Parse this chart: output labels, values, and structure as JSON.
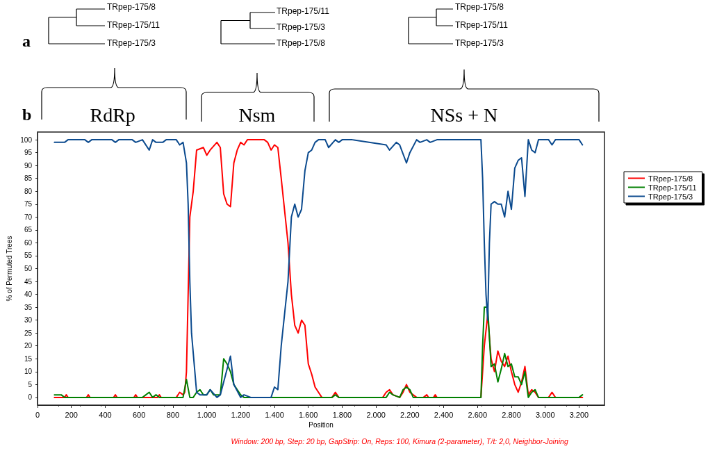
{
  "chart_data": {
    "type": "line",
    "xlabel": "Position",
    "ylabel": "% of Permuted Trees",
    "annotations": [
      "a",
      "b",
      "RdRp",
      "Nsm",
      "NSs + N",
      "TRpep-175/8",
      "TRpep-175/11",
      "TRpep-175/3",
      "TRpep-175/11",
      "TRpep-175/3",
      "TRpep-175/8",
      "TRpep-175/8",
      "TRpep-175/11",
      "TRpep-175/3",
      "Window: 200 bp, Step: 20 bp, GapStrip: On, Reps: 100, Kimura (2-parameter), T/t: 2,0, Neighbor-Joining"
    ],
    "xlim": [
      0,
      3350
    ],
    "ylim": [
      -3,
      103
    ],
    "xticks": [
      0,
      200,
      400,
      600,
      800,
      {
        "value": 1000,
        "label": "1.000"
      },
      {
        "value": 1200,
        "label": "1.200"
      },
      {
        "value": 1400,
        "label": "1.400"
      },
      {
        "value": 1600,
        "label": "1.600"
      },
      {
        "value": 1800,
        "label": "1.800"
      },
      {
        "value": 2000,
        "label": "2.000"
      },
      {
        "value": 2200,
        "label": "2.200"
      },
      {
        "value": 2400,
        "label": "2.400"
      },
      {
        "value": 2600,
        "label": "2.600"
      },
      {
        "value": 2800,
        "label": "2.800"
      },
      {
        "value": 3000,
        "label": "3.000"
      },
      {
        "value": 3200,
        "label": "3.200"
      }
    ],
    "yticks": [
      0,
      5,
      10,
      15,
      20,
      25,
      30,
      35,
      40,
      45,
      50,
      55,
      60,
      65,
      70,
      75,
      80,
      85,
      90,
      95,
      100
    ],
    "grid": false,
    "legend": "right",
    "marker": "none",
    "line_style": "solid",
    "series": [
      {
        "name": "TRpep-175/8",
        "color": "#ff0000",
        "x": [
          100,
          160,
          170,
          180,
          290,
          300,
          310,
          450,
          460,
          470,
          570,
          580,
          590,
          710,
          720,
          730,
          820,
          840,
          860,
          870,
          880,
          890,
          900,
          920,
          940,
          980,
          1000,
          1020,
          1060,
          1080,
          1100,
          1120,
          1140,
          1160,
          1180,
          1200,
          1220,
          1240,
          1340,
          1360,
          1380,
          1400,
          1420,
          1440,
          1480,
          1500,
          1520,
          1540,
          1560,
          1580,
          1600,
          1620,
          1640,
          1660,
          1680,
          1740,
          1760,
          1780,
          2040,
          2060,
          2080,
          2100,
          2140,
          2160,
          2180,
          2200,
          2240,
          2280,
          2300,
          2310,
          2340,
          2350,
          2360,
          2620,
          2630,
          2640,
          2660,
          2680,
          2700,
          2720,
          2740,
          2760,
          2780,
          2800,
          2820,
          2840,
          2860,
          2880,
          2900,
          2920,
          2940,
          2960,
          3020,
          3040,
          3060,
          3220
        ],
        "values": [
          0,
          0,
          1,
          0,
          0,
          1,
          0,
          0,
          1,
          0,
          0,
          1,
          0,
          0,
          1,
          0,
          0,
          2,
          1,
          2,
          10,
          40,
          70,
          80,
          96,
          97,
          94,
          96,
          99,
          97,
          79,
          75,
          74,
          91,
          96,
          99,
          98,
          100,
          100,
          99,
          96,
          98,
          97,
          85,
          60,
          40,
          28,
          25,
          30,
          28,
          13,
          9,
          4,
          2,
          0,
          0,
          2,
          0,
          0,
          2,
          3,
          1,
          0,
          2,
          5,
          2,
          0,
          0,
          1,
          0,
          0,
          1,
          0,
          0,
          10,
          20,
          32,
          15,
          10,
          18,
          14,
          12,
          16,
          10,
          5,
          2,
          6,
          12,
          1,
          3,
          2,
          0,
          0,
          2,
          0,
          0
        ]
      },
      {
        "name": "TRpep-175/11",
        "color": "#008000",
        "x": [
          100,
          140,
          160,
          620,
          660,
          680,
          700,
          720,
          860,
          880,
          900,
          920,
          940,
          960,
          980,
          1000,
          1020,
          1040,
          1060,
          1080,
          1100,
          1120,
          1140,
          1160,
          1180,
          1200,
          1220,
          1740,
          1760,
          1780,
          2060,
          2080,
          2100,
          2140,
          2160,
          2180,
          2200,
          2220,
          2620,
          2630,
          2640,
          2660,
          2680,
          2700,
          2720,
          2740,
          2760,
          2780,
          2800,
          2820,
          2840,
          2860,
          2880,
          2900,
          2920,
          2940,
          2960,
          3200,
          3220
        ],
        "values": [
          1,
          1,
          0,
          0,
          2,
          0,
          1,
          0,
          0,
          7,
          0,
          0,
          2,
          3,
          1,
          1,
          3,
          1,
          1,
          1,
          15,
          13,
          10,
          5,
          3,
          1,
          0,
          0,
          1,
          0,
          0,
          2,
          1,
          0,
          3,
          4,
          3,
          0,
          0,
          20,
          35,
          35,
          12,
          13,
          6,
          11,
          17,
          12,
          13,
          8,
          8,
          5,
          10,
          0,
          2,
          3,
          0,
          0,
          1
        ]
      },
      {
        "name": "TRpep-175/3",
        "color": "#0b4a8e",
        "x": [
          100,
          160,
          180,
          280,
          300,
          320,
          440,
          460,
          480,
          560,
          580,
          620,
          660,
          680,
          700,
          740,
          760,
          820,
          840,
          860,
          880,
          890,
          900,
          910,
          940,
          960,
          1000,
          1020,
          1060,
          1080,
          1100,
          1140,
          1160,
          1200,
          1220,
          1260,
          1380,
          1400,
          1420,
          1440,
          1480,
          1500,
          1520,
          1540,
          1560,
          1580,
          1600,
          1620,
          1640,
          1660,
          1700,
          1720,
          1760,
          1780,
          1800,
          1860,
          2060,
          2080,
          2120,
          2140,
          2180,
          2200,
          2240,
          2260,
          2300,
          2320,
          2360,
          2620,
          2630,
          2640,
          2650,
          2660,
          2670,
          2680,
          2700,
          2720,
          2740,
          2760,
          2780,
          2800,
          2820,
          2840,
          2860,
          2880,
          2900,
          2920,
          2940,
          2960,
          3020,
          3040,
          3060,
          3200,
          3220
        ],
        "values": [
          99,
          99,
          100,
          100,
          99,
          100,
          100,
          99,
          100,
          100,
          99,
          100,
          96,
          100,
          99,
          99,
          100,
          100,
          98,
          99,
          91,
          75,
          45,
          25,
          2,
          1,
          1,
          3,
          0,
          1,
          6,
          16,
          5,
          0,
          1,
          0,
          0,
          4,
          3,
          20,
          45,
          70,
          75,
          70,
          73,
          88,
          95,
          96,
          99,
          100,
          100,
          97,
          100,
          99,
          100,
          100,
          98,
          96,
          99,
          98,
          91,
          95,
          100,
          99,
          100,
          99,
          100,
          100,
          85,
          60,
          40,
          30,
          60,
          75,
          76,
          75,
          75,
          70,
          80,
          73,
          89,
          92,
          93,
          78,
          100,
          96,
          95,
          100,
          100,
          98,
          100,
          100,
          98
        ]
      }
    ]
  }
}
